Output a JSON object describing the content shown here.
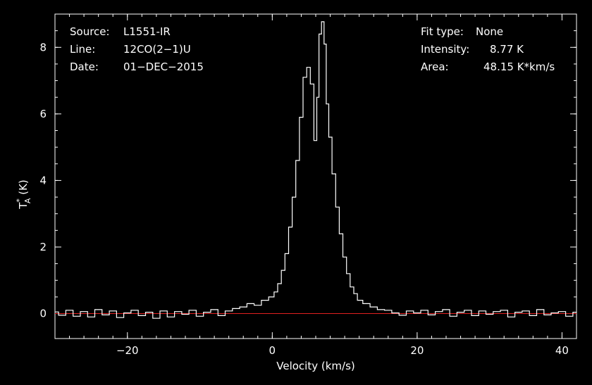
{
  "chart_data": {
    "type": "line",
    "xlabel": "Velocity (km/s)",
    "ylabel_main": "T",
    "ylabel_super": "*",
    "ylabel_sub": "A",
    "ylabel_unit": " (K)",
    "xlim": [
      -30,
      42
    ],
    "ylim": [
      -0.75,
      9.0
    ],
    "xticks": [
      -20,
      0,
      20,
      40
    ],
    "xtick_labels": [
      "−20",
      "0",
      "20",
      "40"
    ],
    "yticks": [
      0,
      2,
      4,
      6,
      8
    ],
    "ytick_labels": [
      "0",
      "2",
      "4",
      "6",
      "8"
    ],
    "grid": false,
    "baseline": {
      "value": 0,
      "color": "#e02020"
    },
    "series_color": "#ffffff",
    "axes_color": "#ffffff",
    "info_left": [
      {
        "label": "Source:",
        "value": "L1551-IR"
      },
      {
        "label": "Line:",
        "value": "12CO(2−1)U"
      },
      {
        "label": "Date:",
        "value": "01−DEC−2015"
      }
    ],
    "info_right": [
      {
        "label": "Fit type:",
        "value": "None"
      },
      {
        "label": "Intensity:",
        "value": "8.77 K"
      },
      {
        "label": "Area:",
        "value": "48.15 K*km/s"
      }
    ],
    "series": [
      {
        "x": [
          -30,
          -29,
          -28,
          -27,
          -26,
          -25,
          -24,
          -23,
          -22,
          -21,
          -20,
          -19,
          -18,
          -17,
          -16,
          -15,
          -14,
          -13,
          -12,
          -11,
          -10,
          -9,
          -8,
          -7,
          -6,
          -5,
          -4,
          -3,
          -2,
          -1,
          0,
          0.5,
          1,
          1.5,
          2,
          2.5,
          3,
          3.5,
          4,
          4.5,
          5,
          5.5,
          6,
          6.3,
          6.6,
          7,
          7.3,
          7.6,
          8,
          8.5,
          9,
          9.5,
          10,
          10.5,
          11,
          11.5,
          12,
          13,
          14,
          15,
          16,
          17,
          18,
          19,
          20,
          21,
          22,
          23,
          24,
          25,
          26,
          27,
          28,
          29,
          30,
          31,
          32,
          33,
          34,
          35,
          36,
          37,
          38,
          39,
          40,
          41,
          42
        ],
        "y": [
          0.05,
          -0.05,
          0.1,
          -0.08,
          0.06,
          -0.1,
          0.12,
          -0.04,
          0.08,
          -0.12,
          0.02,
          0.1,
          -0.06,
          0.04,
          -0.14,
          0.08,
          -0.1,
          0.06,
          -0.02,
          0.1,
          -0.08,
          0.04,
          0.12,
          -0.06,
          0.08,
          0.15,
          0.2,
          0.3,
          0.25,
          0.4,
          0.5,
          0.65,
          0.9,
          1.3,
          1.8,
          2.6,
          3.5,
          4.6,
          5.9,
          7.1,
          7.4,
          6.9,
          5.2,
          6.5,
          8.4,
          8.77,
          8.1,
          6.3,
          5.3,
          4.2,
          3.2,
          2.4,
          1.7,
          1.2,
          0.8,
          0.6,
          0.4,
          0.3,
          0.2,
          0.12,
          0.1,
          0.02,
          -0.05,
          0.08,
          0.02,
          0.1,
          -0.04,
          0.06,
          0.12,
          -0.08,
          0.04,
          0.1,
          -0.06,
          0.08,
          -0.02,
          0.06,
          0.1,
          -0.1,
          0.04,
          0.08,
          -0.06,
          0.12,
          -0.04,
          0.02,
          0.06,
          -0.08,
          0.04
        ]
      }
    ]
  }
}
